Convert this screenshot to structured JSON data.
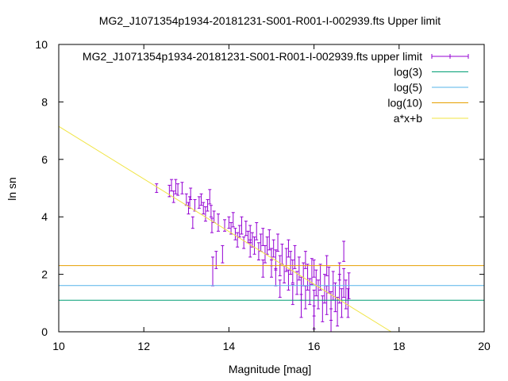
{
  "chart_data": {
    "type": "scatter",
    "title": "MG2_J1071354p1934-20181231-S001-R001-I-002939.fts Upper limit",
    "xlabel": "Magnitude [mag]",
    "ylabel": "ln sn",
    "xlim": [
      10,
      20
    ],
    "ylim": [
      0,
      10
    ],
    "xticks": [
      "10",
      "12",
      "14",
      "16",
      "18",
      "20"
    ],
    "yticks": [
      "0",
      "2",
      "4",
      "6",
      "8",
      "10"
    ],
    "grid": false,
    "legend_position": "top-right",
    "legend": [
      {
        "label": "MG2_J1071354p1934-20181231-S001-R001-I-002939.fts upper limit",
        "color": "#9400d3",
        "kind": "errorbar"
      },
      {
        "label": "log(3)",
        "color": "#009e73",
        "kind": "line"
      },
      {
        "label": "log(5)",
        "color": "#56b4e9",
        "kind": "line"
      },
      {
        "label": "log(10)",
        "color": "#e69f00",
        "kind": "line"
      },
      {
        "label": "a*x+b",
        "color": "#f0e442",
        "kind": "line"
      }
    ],
    "hlines": [
      {
        "name": "log(3)",
        "y": 1.0986,
        "color": "#009e73"
      },
      {
        "name": "log(5)",
        "y": 1.6094,
        "color": "#56b4e9"
      },
      {
        "name": "log(10)",
        "y": 2.3026,
        "color": "#e69f00"
      }
    ],
    "fit": {
      "name": "a*x+b",
      "a": -0.915,
      "b": 16.3,
      "color": "#f0e442"
    },
    "series": [
      {
        "name": "MG2_J1071354p1934-20181231-S001-R001-I-002939.fts upper limit",
        "color": "#9400d3",
        "points": [
          [
            12.3,
            5.0,
            0.15
          ],
          [
            12.6,
            4.9,
            0.2
          ],
          [
            12.65,
            5.1,
            0.2
          ],
          [
            12.7,
            4.7,
            0.2
          ],
          [
            12.75,
            5.05,
            0.25
          ],
          [
            12.8,
            4.95,
            0.2
          ],
          [
            12.9,
            5.0,
            0.2
          ],
          [
            13.0,
            4.6,
            0.2
          ],
          [
            13.05,
            4.3,
            0.2
          ],
          [
            13.08,
            4.5,
            0.2
          ],
          [
            13.1,
            4.8,
            0.2
          ],
          [
            13.15,
            3.8,
            0.2
          ],
          [
            13.2,
            4.4,
            0.2
          ],
          [
            13.3,
            4.5,
            0.2
          ],
          [
            13.35,
            4.6,
            0.2
          ],
          [
            13.4,
            4.3,
            0.2
          ],
          [
            13.45,
            4.1,
            0.25
          ],
          [
            13.5,
            4.4,
            0.2
          ],
          [
            13.55,
            4.7,
            0.25
          ],
          [
            13.58,
            4.2,
            0.2
          ],
          [
            13.6,
            3.7,
            0.25
          ],
          [
            13.62,
            2.1,
            0.5
          ],
          [
            13.65,
            4.0,
            0.2
          ],
          [
            13.7,
            2.5,
            0.3
          ],
          [
            13.75,
            3.8,
            0.3
          ],
          [
            13.85,
            2.7,
            0.3
          ],
          [
            13.9,
            3.7,
            0.2
          ],
          [
            14.0,
            3.8,
            0.2
          ],
          [
            14.05,
            3.6,
            0.2
          ],
          [
            14.1,
            3.9,
            0.25
          ],
          [
            14.15,
            3.4,
            0.2
          ],
          [
            14.2,
            3.2,
            0.25
          ],
          [
            14.25,
            3.5,
            0.2
          ],
          [
            14.3,
            3.7,
            0.3
          ],
          [
            14.35,
            3.1,
            0.2
          ],
          [
            14.4,
            3.6,
            0.25
          ],
          [
            14.45,
            3.3,
            0.2
          ],
          [
            14.5,
            3.4,
            0.3
          ],
          [
            14.5,
            2.9,
            0.3
          ],
          [
            14.55,
            3.2,
            0.25
          ],
          [
            14.6,
            3.0,
            0.3
          ],
          [
            14.65,
            3.5,
            0.3
          ],
          [
            14.7,
            2.8,
            0.3
          ],
          [
            14.75,
            3.1,
            0.3
          ],
          [
            14.8,
            3.3,
            0.3
          ],
          [
            14.85,
            2.7,
            0.3
          ],
          [
            14.9,
            3.0,
            0.3
          ],
          [
            14.95,
            3.2,
            0.35
          ],
          [
            15.0,
            2.6,
            0.3
          ],
          [
            15.0,
            2.2,
            0.3
          ],
          [
            15.05,
            2.9,
            0.3
          ],
          [
            15.1,
            2.5,
            0.35
          ],
          [
            15.15,
            3.1,
            0.3
          ],
          [
            15.2,
            2.3,
            0.35
          ],
          [
            15.25,
            2.7,
            0.35
          ],
          [
            15.3,
            2.0,
            0.3
          ],
          [
            15.35,
            2.5,
            0.4
          ],
          [
            15.4,
            1.8,
            0.35
          ],
          [
            15.45,
            2.4,
            0.4
          ],
          [
            15.5,
            2.1,
            0.4
          ],
          [
            15.55,
            2.6,
            0.4
          ],
          [
            15.6,
            1.7,
            0.4
          ],
          [
            15.65,
            2.2,
            0.4
          ],
          [
            15.7,
            1.5,
            0.4
          ],
          [
            15.75,
            2.0,
            0.4
          ],
          [
            15.8,
            1.2,
            0.4
          ],
          [
            15.85,
            1.9,
            0.45
          ],
          [
            15.9,
            1.4,
            0.45
          ],
          [
            15.95,
            2.1,
            0.45
          ],
          [
            16.0,
            1.0,
            0.45
          ],
          [
            16.05,
            1.7,
            0.45
          ],
          [
            16.1,
            1.3,
            0.5
          ],
          [
            16.15,
            1.9,
            0.45
          ],
          [
            16.2,
            0.8,
            0.45
          ],
          [
            16.25,
            1.5,
            0.5
          ],
          [
            16.3,
            1.1,
            0.5
          ],
          [
            16.35,
            1.8,
            0.45
          ],
          [
            16.4,
            0.9,
            0.5
          ],
          [
            16.45,
            1.6,
            0.5
          ],
          [
            16.5,
            1.2,
            0.5
          ],
          [
            16.55,
            0.7,
            0.5
          ],
          [
            16.6,
            1.5,
            0.5
          ],
          [
            16.65,
            1.0,
            0.5
          ],
          [
            16.7,
            1.7,
            0.5
          ],
          [
            16.75,
            1.3,
            0.5
          ],
          [
            16.8,
            1.0,
            0.5
          ],
          [
            16.82,
            1.6,
            0.45
          ],
          [
            15.2,
            1.5,
            0.3
          ],
          [
            15.5,
            1.3,
            0.35
          ],
          [
            15.8,
            2.5,
            0.3
          ],
          [
            16.0,
            2.2,
            0.3
          ],
          [
            16.3,
            2.3,
            0.35
          ],
          [
            16.6,
            2.1,
            0.3
          ],
          [
            16.7,
            2.8,
            0.35
          ],
          [
            16.0,
            0.5,
            0.4
          ],
          [
            16.4,
            0.4,
            0.4
          ],
          [
            15.7,
            0.9,
            0.4
          ],
          [
            15.4,
            2.9,
            0.3
          ],
          [
            15.1,
            1.9,
            0.3
          ],
          [
            14.8,
            2.2,
            0.3
          ]
        ]
      }
    ]
  }
}
